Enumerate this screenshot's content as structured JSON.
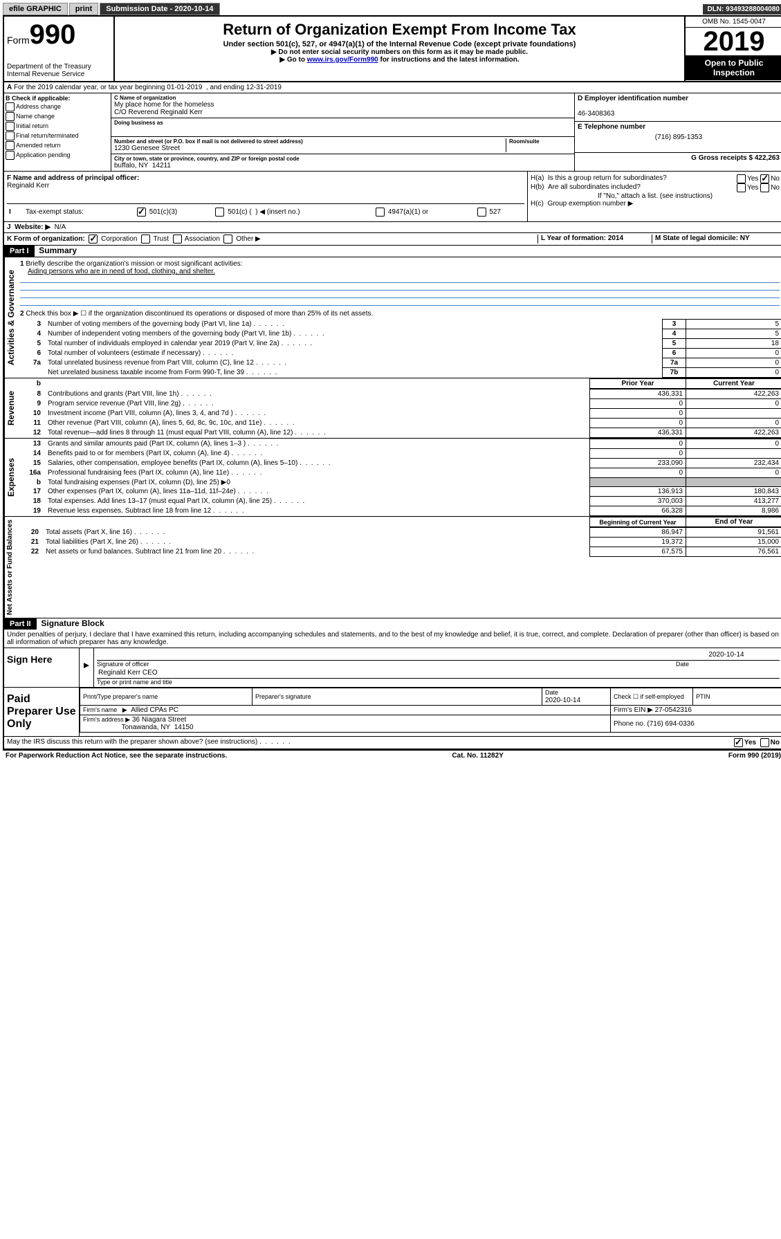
{
  "topbar": {
    "efile": "efile GRAPHIC",
    "print": "print",
    "subdate_label": "Submission Date - 2020-10-14",
    "dln": "DLN: 93493288004080"
  },
  "header": {
    "form_prefix": "Form",
    "form_number": "990",
    "dept": "Department of the Treasury",
    "irs": "Internal Revenue Service",
    "title": "Return of Organization Exempt From Income Tax",
    "subtitle": "Under section 501(c), 527, or 4947(a)(1) of the Internal Revenue Code (except private foundations)",
    "note1": "▶ Do not enter social security numbers on this form as it may be made public.",
    "note2_pre": "▶ Go to ",
    "note2_link": "www.irs.gov/Form990",
    "note2_post": " for instructions and the latest information.",
    "omb": "OMB No. 1545-0047",
    "year": "2019",
    "open": "Open to Public Inspection"
  },
  "rowA": "For the 2019 calendar year, or tax year beginning 01-01-2019  , and ending 12-31-2019",
  "sectionB": {
    "label": "B Check if applicable:",
    "opts": [
      "Address change",
      "Name change",
      "Initial return",
      "Final return/terminated",
      "Amended return",
      "Application pending"
    ],
    "c_label": "C Name of organization",
    "org_name": "My place home for the homeless",
    "care_of": "C/O Reverend Reginald Kerr",
    "dba_label": "Doing business as",
    "addr_label": "Number and street (or P.O. box if mail is not delivered to street address)",
    "room_label": "Room/suite",
    "addr": "1230 Genesee Street",
    "city_label": "City or town, state or province, country, and ZIP or foreign postal code",
    "city": "buffalo, NY  14211",
    "d_label": "D Employer identification number",
    "ein": "46-3408363",
    "e_label": "E Telephone number",
    "phone": "(716) 895-1353",
    "g_label": "G Gross receipts $ 422,263"
  },
  "sectionF": {
    "f_label": "F Name and address of principal officer:",
    "officer": "Reginald Kerr",
    "ha": "H(a)  Is this a group return for subordinates?",
    "hb": "H(b)  Are all subordinates included?",
    "hb_note": "If \"No,\" attach a list. (see instructions)",
    "hc": "H(c)  Group exemption number ▶",
    "yes": "Yes",
    "no": "No"
  },
  "rowI": {
    "label": "Tax-exempt status:",
    "o1": "501(c)(3)",
    "o2": "501(c) (  ) ◀ (insert no.)",
    "o3": "4947(a)(1) or",
    "o4": "527"
  },
  "rowJ": {
    "label": "Website: ▶",
    "val": "N/A"
  },
  "rowK": {
    "label": "K Form of organization:",
    "opts": [
      "Corporation",
      "Trust",
      "Association",
      "Other ▶"
    ],
    "l_label": "L Year of formation: 2014",
    "m_label": "M State of legal domicile: NY"
  },
  "part1": {
    "header": "Part I",
    "title": "Summary",
    "q1_label": "Briefly describe the organization's mission or most significant activities:",
    "q1_text": "Aiding persons who are in need of food, clothing, and shelter.",
    "q2": "Check this box ▶ ☐ if the organization discontinued its operations or disposed of more than 25% of its net assets.",
    "prior_year": "Prior Year",
    "current_year": "Current Year",
    "beg_year": "Beginning of Current Year",
    "end_year": "End of Year",
    "labels": {
      "gov": "Activities & Governance",
      "rev": "Revenue",
      "exp": "Expenses",
      "net": "Net Assets or Fund Balances"
    },
    "lines_gov": [
      {
        "n": "3",
        "d": "Number of voting members of the governing body (Part VI, line 1a)",
        "box": "3",
        "v": "5"
      },
      {
        "n": "4",
        "d": "Number of independent voting members of the governing body (Part VI, line 1b)",
        "box": "4",
        "v": "5"
      },
      {
        "n": "5",
        "d": "Total number of individuals employed in calendar year 2019 (Part V, line 2a)",
        "box": "5",
        "v": "18"
      },
      {
        "n": "6",
        "d": "Total number of volunteers (estimate if necessary)",
        "box": "6",
        "v": "0"
      },
      {
        "n": "7a",
        "d": "Total unrelated business revenue from Part VIII, column (C), line 12",
        "box": "7a",
        "v": "0"
      },
      {
        "n": "",
        "d": "Net unrelated business taxable income from Form 990-T, line 39",
        "box": "7b",
        "v": "0"
      }
    ],
    "lines_rev": [
      {
        "n": "8",
        "d": "Contributions and grants (Part VIII, line 1h)",
        "p": "436,331",
        "c": "422,263"
      },
      {
        "n": "9",
        "d": "Program service revenue (Part VIII, line 2g)",
        "p": "0",
        "c": "0"
      },
      {
        "n": "10",
        "d": "Investment income (Part VIII, column (A), lines 3, 4, and 7d )",
        "p": "0",
        "c": ""
      },
      {
        "n": "11",
        "d": "Other revenue (Part VIII, column (A), lines 5, 6d, 8c, 9c, 10c, and 11e)",
        "p": "0",
        "c": "0"
      },
      {
        "n": "12",
        "d": "Total revenue—add lines 8 through 11 (must equal Part VIII, column (A), line 12)",
        "p": "436,331",
        "c": "422,263"
      }
    ],
    "lines_exp": [
      {
        "n": "13",
        "d": "Grants and similar amounts paid (Part IX, column (A), lines 1–3 )",
        "p": "0",
        "c": "0"
      },
      {
        "n": "14",
        "d": "Benefits paid to or for members (Part IX, column (A), line 4)",
        "p": "0",
        "c": ""
      },
      {
        "n": "15",
        "d": "Salaries, other compensation, employee benefits (Part IX, column (A), lines 5–10)",
        "p": "233,090",
        "c": "232,434"
      },
      {
        "n": "16a",
        "d": "Professional fundraising fees (Part IX, column (A), line 11e)",
        "p": "0",
        "c": "0"
      },
      {
        "n": "b",
        "d": "Total fundraising expenses (Part IX, column (D), line 25) ▶0",
        "p": "",
        "c": "",
        "grey": true
      },
      {
        "n": "17",
        "d": "Other expenses (Part IX, column (A), lines 11a–11d, 11f–24e)",
        "p": "136,913",
        "c": "180,843"
      },
      {
        "n": "18",
        "d": "Total expenses. Add lines 13–17 (must equal Part IX, column (A), line 25)",
        "p": "370,003",
        "c": "413,277"
      },
      {
        "n": "19",
        "d": "Revenue less expenses. Subtract line 18 from line 12",
        "p": "66,328",
        "c": "8,986"
      }
    ],
    "lines_net": [
      {
        "n": "20",
        "d": "Total assets (Part X, line 16)",
        "p": "86,947",
        "c": "91,561"
      },
      {
        "n": "21",
        "d": "Total liabilities (Part X, line 26)",
        "p": "19,372",
        "c": "15,000"
      },
      {
        "n": "22",
        "d": "Net assets or fund balances. Subtract line 21 from line 20",
        "p": "67,575",
        "c": "76,561"
      }
    ]
  },
  "part2": {
    "header": "Part II",
    "title": "Signature Block",
    "perjury": "Under penalties of perjury, I declare that I have examined this return, including accompanying schedules and statements, and to the best of my knowledge and belief, it is true, correct, and complete. Declaration of preparer (other than officer) is based on all information of which preparer has any knowledge.",
    "sign_here": "Sign Here",
    "sig_officer": "Signature of officer",
    "sig_date": "2020-10-14",
    "date_label": "Date",
    "officer_name": "Reginald Kerr CEO",
    "type_label": "Type or print name and title",
    "paid": "Paid Preparer Use Only",
    "prep_name_label": "Print/Type preparer's name",
    "prep_sig_label": "Preparer's signature",
    "prep_date": "2020-10-14",
    "check_self": "Check ☐ if self-employed",
    "ptin": "PTIN",
    "firm_name_label": "Firm's name   ▶",
    "firm_name": "Allied CPAs PC",
    "firm_ein": "Firm's EIN ▶ 27-0542316",
    "firm_addr_label": "Firm's address ▶",
    "firm_addr1": "36 Niagara Street",
    "firm_addr2": "Tonawanda, NY  14150",
    "firm_phone": "Phone no. (716) 694-0336",
    "discuss": "May the IRS discuss this return with the preparer shown above? (see instructions)"
  },
  "footer": {
    "paperwork": "For Paperwork Reduction Act Notice, see the separate instructions.",
    "cat": "Cat. No. 11282Y",
    "form": "Form 990 (2019)"
  }
}
